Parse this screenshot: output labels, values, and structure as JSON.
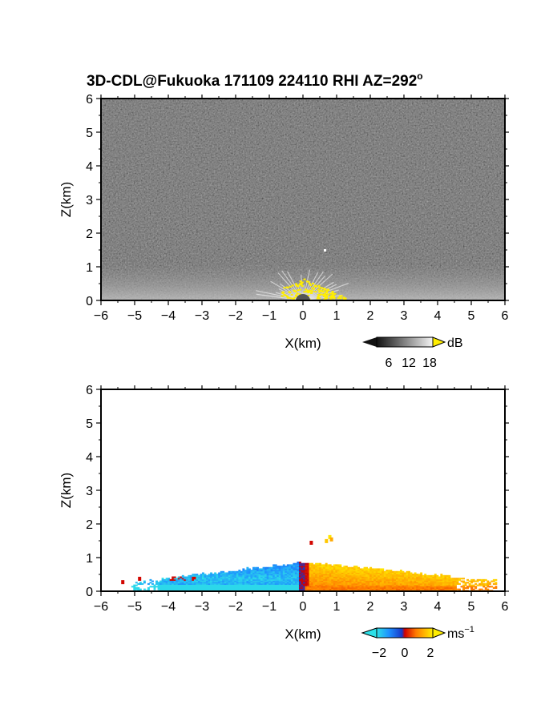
{
  "chart_data": [
    {
      "type": "heatmap",
      "panel": "reflectivity",
      "title_main": "3D-CDL@Fukuoka 171109 224110 RHI AZ=292",
      "title_sup": "o",
      "xlabel": "X(km)",
      "ylabel": "Z(km)",
      "xlim": [
        -6,
        6
      ],
      "ylim": [
        0,
        6
      ],
      "xticks": [
        "-6",
        "-5",
        "-4",
        "-3",
        "-2",
        "-1",
        "0",
        "1",
        "2",
        "3",
        "4",
        "5",
        "6"
      ],
      "yticks": [
        "0",
        "1",
        "2",
        "3",
        "4",
        "5",
        "6"
      ],
      "colorbar": {
        "unit": "dB",
        "ticks": [
          "6",
          "12",
          "18"
        ]
      },
      "background_noise": "dark grey speckle over full domain",
      "features": [
        {
          "desc": "bright low-level return",
          "x": [
            -6,
            6
          ],
          "z": [
            0,
            0.7
          ],
          "peak_at_x": 0
        },
        {
          "desc": "saturated (>18 dB) returns",
          "color": "#ffee00",
          "x": [
            -0.4,
            1.0
          ],
          "z": [
            0,
            0.5
          ]
        },
        {
          "desc": "isolated bright point",
          "x": 0.7,
          "z": 1.5
        }
      ]
    },
    {
      "type": "heatmap",
      "panel": "doppler_velocity",
      "xlabel": "X(km)",
      "ylabel": "Z(km)",
      "xlim": [
        -6,
        6
      ],
      "ylim": [
        0,
        6
      ],
      "xticks": [
        "-6",
        "-5",
        "-4",
        "-3",
        "-2",
        "-1",
        "0",
        "1",
        "2",
        "3",
        "4",
        "5",
        "6"
      ],
      "yticks": [
        "0",
        "1",
        "2",
        "3",
        "4",
        "5",
        "6"
      ],
      "colorbar": {
        "unit_main": "ms",
        "unit_sup": "−1",
        "ticks": [
          "−2",
          "0",
          "2"
        ]
      },
      "features": [
        {
          "desc": "negative velocities (blue/cyan)",
          "x": [
            -5.0,
            0.0
          ],
          "z": [
            0,
            0.9
          ],
          "approx_value": -1.5
        },
        {
          "desc": "positive velocities (orange/yellow)",
          "x": [
            0.0,
            5.6
          ],
          "z": [
            0,
            0.8
          ],
          "approx_value": 1.5
        },
        {
          "desc": "near-zero shear zone (red)",
          "x": [
            -0.2,
            0.2
          ],
          "z": [
            0,
            0.8
          ],
          "approx_value": 0
        }
      ]
    }
  ]
}
